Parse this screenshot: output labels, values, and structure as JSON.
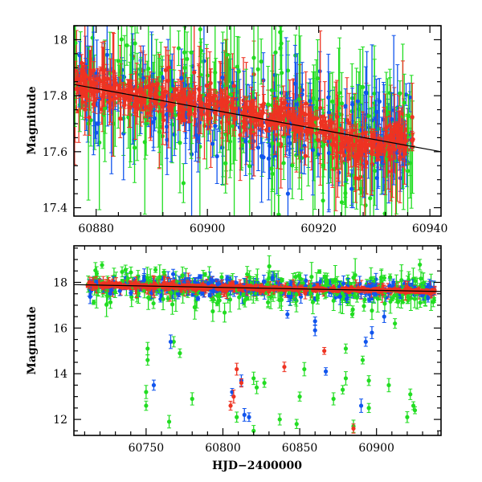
{
  "chart_data": [
    {
      "type": "scatter",
      "panel": "top",
      "title": "",
      "xlabel": "",
      "ylabel": "Magnitude",
      "xlim": [
        60876,
        60942
      ],
      "ylim": [
        18.05,
        17.37
      ],
      "y_inverted": true,
      "xticks": [
        60880,
        60900,
        60920,
        60940
      ],
      "yticks": [
        17.4,
        17.6,
        17.8,
        18
      ],
      "ytick_labels": [
        "17.4",
        "17.6",
        "17.8",
        "18"
      ],
      "series": [
        {
          "color": "#22dd22"
        },
        {
          "color": "#1155ee"
        },
        {
          "color": "#ee3322"
        }
      ],
      "trend_line": {
        "color": "#000000",
        "x": [
          60876,
          60942
        ],
        "y": [
          17.84,
          17.6
        ]
      },
      "data_range": {
        "x": [
          60876,
          60937
        ],
        "y_core": [
          17.6,
          17.9
        ]
      }
    },
    {
      "type": "scatter",
      "panel": "bottom",
      "title": "",
      "xlabel": "HJD−2400000",
      "ylabel": "Magnitude",
      "xlim": [
        60703,
        60942
      ],
      "ylim": [
        19.6,
        11.3
      ],
      "y_inverted": true,
      "xticks": [
        60750,
        60800,
        60850,
        60900
      ],
      "yticks": [
        12,
        14,
        16,
        18
      ],
      "series": [
        {
          "color": "#22dd22"
        },
        {
          "color": "#1155ee"
        },
        {
          "color": "#ee3322"
        }
      ],
      "trend_line": {
        "color": "#000000",
        "x": [
          60703,
          60942
        ],
        "y": [
          17.9,
          17.6
        ]
      },
      "outliers": {
        "green": [
          [
            60750,
            12.6
          ],
          [
            60750,
            13.2
          ],
          [
            60751,
            14.6
          ],
          [
            60751,
            15.1
          ],
          [
            60765,
            11.9
          ],
          [
            60780,
            12.9
          ],
          [
            60809,
            12.1
          ],
          [
            60820,
            11.5
          ],
          [
            60820,
            13.8
          ],
          [
            60822,
            13.4
          ],
          [
            60827,
            13.6
          ],
          [
            60837,
            12.0
          ],
          [
            60848,
            11.8
          ],
          [
            60850,
            13.0
          ],
          [
            60853,
            14.2
          ],
          [
            60872,
            12.9
          ],
          [
            60878,
            13.3
          ],
          [
            60880,
            13.8
          ],
          [
            60885,
            11.7
          ],
          [
            60895,
            12.5
          ],
          [
            60895,
            13.7
          ],
          [
            60908,
            13.5
          ],
          [
            60912,
            16.2
          ],
          [
            60920,
            12.1
          ],
          [
            60922,
            13.1
          ],
          [
            60924,
            12.6
          ],
          [
            60925,
            12.4
          ],
          [
            60768,
            15.4
          ],
          [
            60772,
            14.9
          ],
          [
            60880,
            15.1
          ],
          [
            60891,
            14.6
          ]
        ],
        "blue": [
          [
            60755,
            13.5
          ],
          [
            60766,
            15.4
          ],
          [
            60806,
            13.2
          ],
          [
            60812,
            13.7
          ],
          [
            60814,
            12.2
          ],
          [
            60817,
            12.1
          ],
          [
            60860,
            15.9
          ],
          [
            60867,
            14.1
          ],
          [
            60890,
            12.6
          ],
          [
            60893,
            15.4
          ],
          [
            60897,
            15.8
          ],
          [
            60905,
            16.5
          ],
          [
            60860,
            16.3
          ],
          [
            60842,
            16.6
          ]
        ],
        "red": [
          [
            60805,
            12.6
          ],
          [
            60807,
            13.0
          ],
          [
            60809,
            14.2
          ],
          [
            60812,
            13.6
          ],
          [
            60840,
            14.3
          ],
          [
            60866,
            15.0
          ],
          [
            60885,
            11.6
          ]
        ]
      }
    }
  ]
}
